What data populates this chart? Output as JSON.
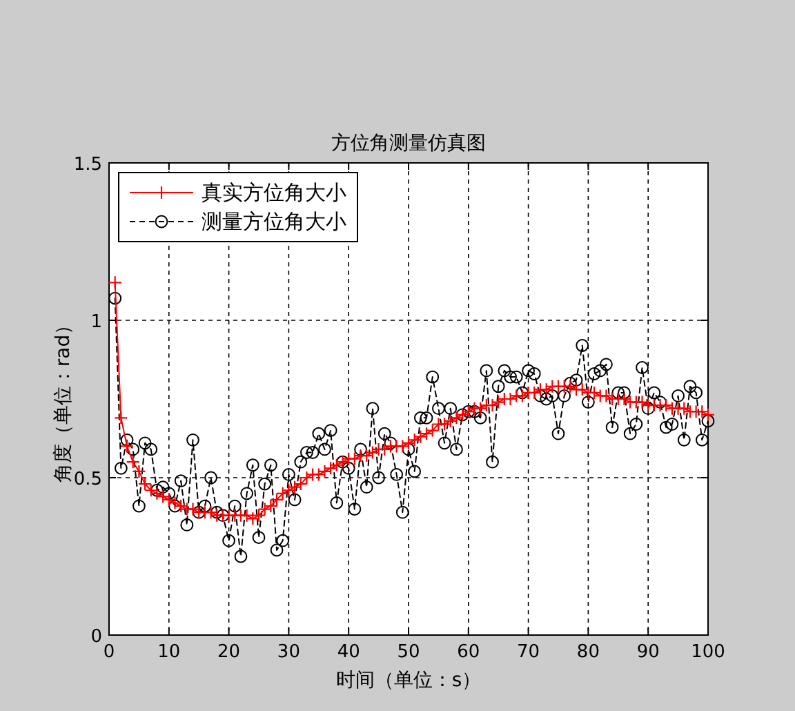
{
  "chart_data": {
    "type": "line",
    "title": "方位角测量仿真图",
    "xlabel": "时间（单位：s）",
    "ylabel": "角度（单位：rad）",
    "xlim": [
      0,
      100
    ],
    "ylim": [
      0,
      1.5
    ],
    "xticks": [
      0,
      10,
      20,
      30,
      40,
      50,
      60,
      70,
      80,
      90,
      100
    ],
    "yticks": [
      0,
      0.5,
      1,
      1.5
    ],
    "grid": true,
    "legend": "top left",
    "x": [
      1,
      2,
      3,
      4,
      5,
      6,
      7,
      8,
      9,
      10,
      11,
      12,
      13,
      14,
      15,
      16,
      17,
      18,
      19,
      20,
      21,
      22,
      23,
      24,
      25,
      26,
      27,
      28,
      29,
      30,
      31,
      32,
      33,
      34,
      35,
      36,
      37,
      38,
      39,
      40,
      41,
      42,
      43,
      44,
      45,
      46,
      47,
      48,
      49,
      50,
      51,
      52,
      53,
      54,
      55,
      56,
      57,
      58,
      59,
      60,
      61,
      62,
      63,
      64,
      65,
      66,
      67,
      68,
      69,
      70,
      71,
      72,
      73,
      74,
      75,
      76,
      77,
      78,
      79,
      80,
      81,
      82,
      83,
      84,
      85,
      86,
      87,
      88,
      89,
      90,
      91,
      92,
      93,
      94,
      95,
      96,
      97,
      98,
      99,
      100
    ],
    "series": [
      {
        "name": "真实方位角大小",
        "color": "#ff0000",
        "marker": "cross",
        "line_style": "solid",
        "values": [
          1.12,
          0.69,
          0.6,
          0.55,
          0.52,
          0.48,
          0.46,
          0.45,
          0.44,
          0.43,
          0.42,
          0.41,
          0.4,
          0.4,
          0.39,
          0.39,
          0.39,
          0.38,
          0.38,
          0.38,
          0.38,
          0.38,
          0.38,
          0.37,
          0.38,
          0.4,
          0.41,
          0.43,
          0.45,
          0.46,
          0.47,
          0.48,
          0.5,
          0.51,
          0.51,
          0.52,
          0.53,
          0.54,
          0.55,
          0.56,
          0.56,
          0.57,
          0.57,
          0.58,
          0.59,
          0.59,
          0.6,
          0.6,
          0.6,
          0.61,
          0.62,
          0.63,
          0.64,
          0.65,
          0.67,
          0.67,
          0.68,
          0.69,
          0.7,
          0.71,
          0.72,
          0.72,
          0.73,
          0.73,
          0.74,
          0.75,
          0.75,
          0.76,
          0.76,
          0.77,
          0.77,
          0.78,
          0.78,
          0.79,
          0.79,
          0.79,
          0.79,
          0.78,
          0.78,
          0.77,
          0.77,
          0.76,
          0.76,
          0.75,
          0.75,
          0.75,
          0.74,
          0.74,
          0.74,
          0.73,
          0.73,
          0.73,
          0.73,
          0.72,
          0.72,
          0.72,
          0.71,
          0.71,
          0.71,
          0.7
        ]
      },
      {
        "name": "测量方位角大小",
        "color": "#000000",
        "marker": "circle",
        "line_style": "dashed",
        "values": [
          1.07,
          0.53,
          0.62,
          0.59,
          0.41,
          0.61,
          0.59,
          0.46,
          0.47,
          0.45,
          0.41,
          0.49,
          0.35,
          0.62,
          0.39,
          0.41,
          0.5,
          0.39,
          0.38,
          0.3,
          0.41,
          0.25,
          0.45,
          0.54,
          0.31,
          0.48,
          0.54,
          0.27,
          0.3,
          0.51,
          0.43,
          0.55,
          0.58,
          0.58,
          0.64,
          0.59,
          0.65,
          0.42,
          0.55,
          0.53,
          0.4,
          0.59,
          0.47,
          0.72,
          0.5,
          0.64,
          0.61,
          0.51,
          0.39,
          0.59,
          0.52,
          0.69,
          0.69,
          0.82,
          0.72,
          0.61,
          0.72,
          0.59,
          0.7,
          0.71,
          0.71,
          0.69,
          0.84,
          0.55,
          0.79,
          0.84,
          0.82,
          0.82,
          0.77,
          0.84,
          0.83,
          0.76,
          0.75,
          0.76,
          0.64,
          0.76,
          0.8,
          0.81,
          0.92,
          0.74,
          0.83,
          0.84,
          0.86,
          0.66,
          0.77,
          0.77,
          0.64,
          0.67,
          0.85,
          0.72,
          0.77,
          0.74,
          0.66,
          0.67,
          0.76,
          0.62,
          0.79,
          0.77,
          0.62,
          0.68
        ]
      }
    ]
  }
}
